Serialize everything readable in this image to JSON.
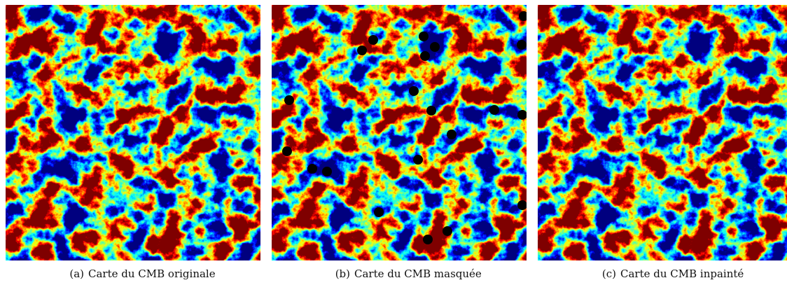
{
  "figures": [
    {
      "label": "(a)",
      "caption": "Carte du CMB originale"
    },
    {
      "label": "(b)",
      "caption": "Carte du CMB masquée"
    },
    {
      "label": "(c)",
      "caption": "Carte du CMB inpainté"
    }
  ]
}
